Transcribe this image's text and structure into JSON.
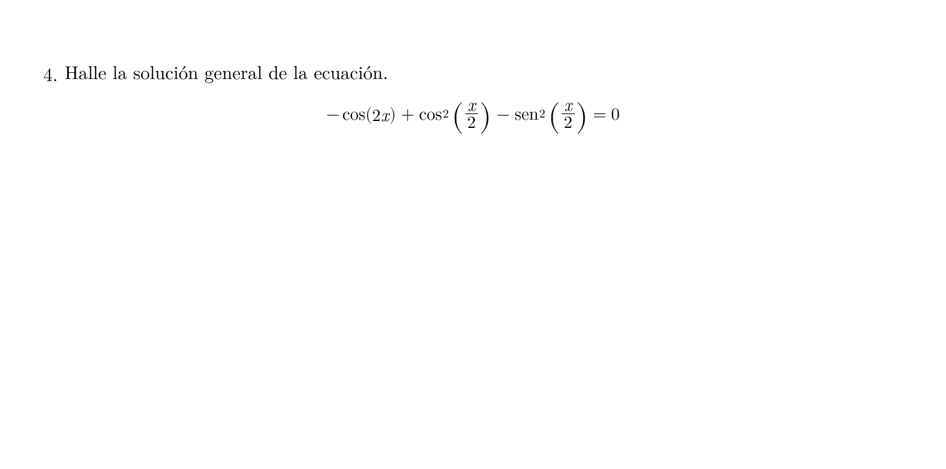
{
  "problem": {
    "number": "4.",
    "stem": "Halle la solución general de la ecuación."
  },
  "eq": {
    "neg1": "−",
    "cos1": "cos",
    "lpar1": "(",
    "two": "2",
    "x1": "x",
    "rpar1": ")",
    "plus": "+",
    "cos2": "cos",
    "sq1": "2",
    "biglpar1": "(",
    "frac1_num": "x",
    "frac1_den": "2",
    "bigrpar1": ")",
    "minus2": "−",
    "sen": "sen",
    "sq2": "2",
    "biglpar2": "(",
    "frac2_num": "x",
    "frac2_den": "2",
    "bigrpar2": ")",
    "equals": "=",
    "zero": "0"
  }
}
